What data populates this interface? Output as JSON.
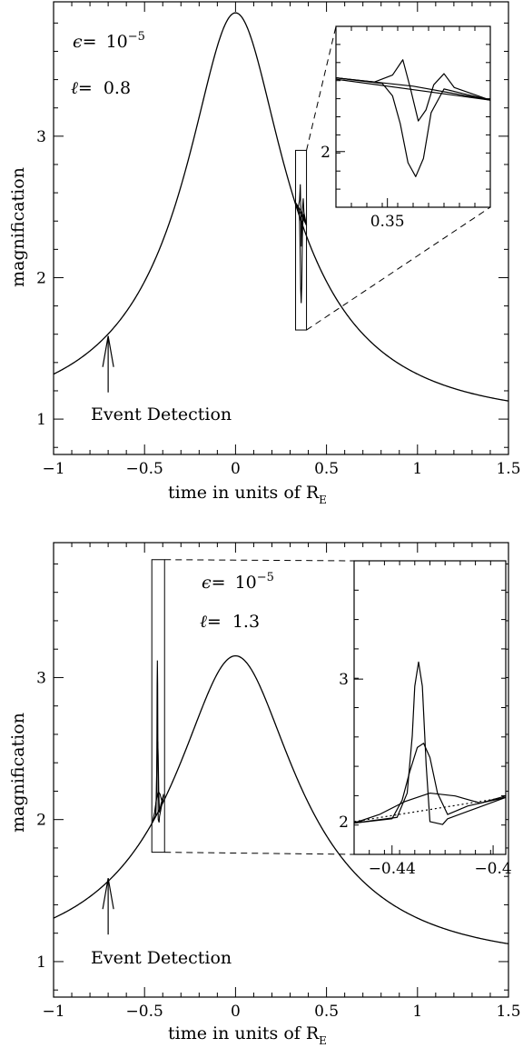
{
  "chart_data": [
    {
      "type": "line",
      "title": "",
      "xlabel": "time in units of R",
      "xlabel_sub": "E",
      "ylabel": "magnification",
      "xlim": [
        -1,
        1.5
      ],
      "ylim": [
        0.75,
        3.95
      ],
      "x_ticks": [
        -1,
        -0.5,
        0,
        0.5,
        1,
        1.5
      ],
      "x_tick_labels": [
        "−1",
        "−0.5",
        "0",
        "0.5",
        "1",
        "1.5"
      ],
      "y_ticks": [
        1,
        2,
        3
      ],
      "y_tick_labels": [
        "1",
        "2",
        "3"
      ],
      "params": {
        "epsilon_label": "ϵ=",
        "epsilon_base": "10",
        "epsilon_exp": "−5",
        "ell_label": "ℓ=",
        "ell_value": "0.8"
      },
      "annotation": {
        "text": "Event Detection",
        "x": -0.7,
        "y": 1.6
      },
      "model": {
        "u0": 0.265,
        "t_peak": 0.0
      },
      "zoom_box": {
        "x0": 0.33,
        "x1": 0.39,
        "y0": 1.63,
        "y1": 2.9
      },
      "inset": {
        "xlim": [
          0.33,
          0.39
        ],
        "ylim": [
          1.6,
          2.9
        ],
        "x_tick_labels": [
          "0.35"
        ],
        "x_ticks": [
          0.35
        ],
        "y_tick_labels": [
          "2"
        ],
        "y_ticks": [
          2
        ],
        "series": [
          {
            "name": "",
            "x": [
              0.33,
              0.345,
              0.352,
              0.356,
              0.359,
              0.362,
              0.365,
              0.368,
              0.372,
              0.376,
              0.39
            ],
            "y": [
              2.53,
              2.5,
              2.55,
              2.66,
              2.45,
              2.22,
              2.3,
              2.48,
              2.56,
              2.46,
              2.37
            ]
          },
          {
            "name": "",
            "x": [
              0.33,
              0.348,
              0.352,
              0.355,
              0.358,
              0.361,
              0.364,
              0.367,
              0.372,
              0.39
            ],
            "y": [
              2.53,
              2.49,
              2.4,
              2.2,
              1.92,
              1.82,
              1.95,
              2.28,
              2.45,
              2.37
            ]
          },
          {
            "name": "",
            "x": [
              0.33,
              0.39
            ],
            "y": [
              2.52,
              2.37
            ]
          },
          {
            "name": "",
            "x": [
              0.33,
              0.36,
              0.39
            ],
            "y": [
              2.53,
              2.47,
              2.37
            ]
          }
        ]
      }
    },
    {
      "type": "line",
      "title": "",
      "xlabel": "time in units of R",
      "xlabel_sub": "E",
      "ylabel": "magnification",
      "xlim": [
        -1,
        1.5
      ],
      "ylim": [
        0.75,
        3.95
      ],
      "x_ticks": [
        -1,
        -0.5,
        0,
        0.5,
        1,
        1.5
      ],
      "x_tick_labels": [
        "−1",
        "−0.5",
        "0",
        "0.5",
        "1",
        "1.5"
      ],
      "y_ticks": [
        1,
        2,
        3
      ],
      "y_tick_labels": [
        "1",
        "2",
        "3"
      ],
      "params": {
        "epsilon_label": "ϵ=",
        "epsilon_base": "10",
        "epsilon_exp": "−5",
        "ell_label": "ℓ=",
        "ell_value": "1.3"
      },
      "annotation": {
        "text": "Event Detection",
        "x": -0.7,
        "y": 1.6
      },
      "model": {
        "u0": 0.33,
        "t_peak": 0.0
      },
      "zoom_box": {
        "x0": -0.46,
        "x1": -0.39,
        "y0": 1.77,
        "y1": 3.83
      },
      "inset": {
        "xlim": [
          -0.455,
          -0.395
        ],
        "ylim": [
          1.77,
          3.83
        ],
        "x_tick_labels": [
          "−0.44",
          "−0.4"
        ],
        "x_ticks": [
          -0.44,
          -0.4
        ],
        "y_tick_labels": [
          "2",
          "3"
        ],
        "y_ticks": [
          2,
          3
        ],
        "series": [
          {
            "name": "",
            "x": [
              -0.455,
              -0.438,
              -0.434,
              -0.432,
              -0.431,
              -0.4295,
              -0.428,
              -0.4265,
              -0.425,
              -0.42,
              -0.418,
              -0.395
            ],
            "y": [
              1.99,
              2.03,
              2.2,
              2.6,
              2.95,
              3.12,
              2.95,
              2.4,
              2.0,
              1.98,
              2.02,
              2.17
            ]
          },
          {
            "name": "",
            "x": [
              -0.455,
              -0.44,
              -0.436,
              -0.433,
              -0.43,
              -0.4275,
              -0.425,
              -0.422,
              -0.418,
              -0.41,
              -0.395
            ],
            "y": [
              1.99,
              2.02,
              2.15,
              2.35,
              2.52,
              2.55,
              2.45,
              2.2,
              2.05,
              2.11,
              2.17
            ]
          },
          {
            "name": "",
            "x": [
              -0.455,
              -0.445,
              -0.435,
              -0.425,
              -0.415,
              -0.405,
              -0.395
            ],
            "y": [
              1.99,
              2.05,
              2.14,
              2.2,
              2.18,
              2.13,
              2.18
            ]
          },
          {
            "name": "",
            "x": [
              -0.455,
              -0.395
            ],
            "y": [
              2.0,
              2.17
            ],
            "dashed": true
          }
        ]
      }
    }
  ]
}
